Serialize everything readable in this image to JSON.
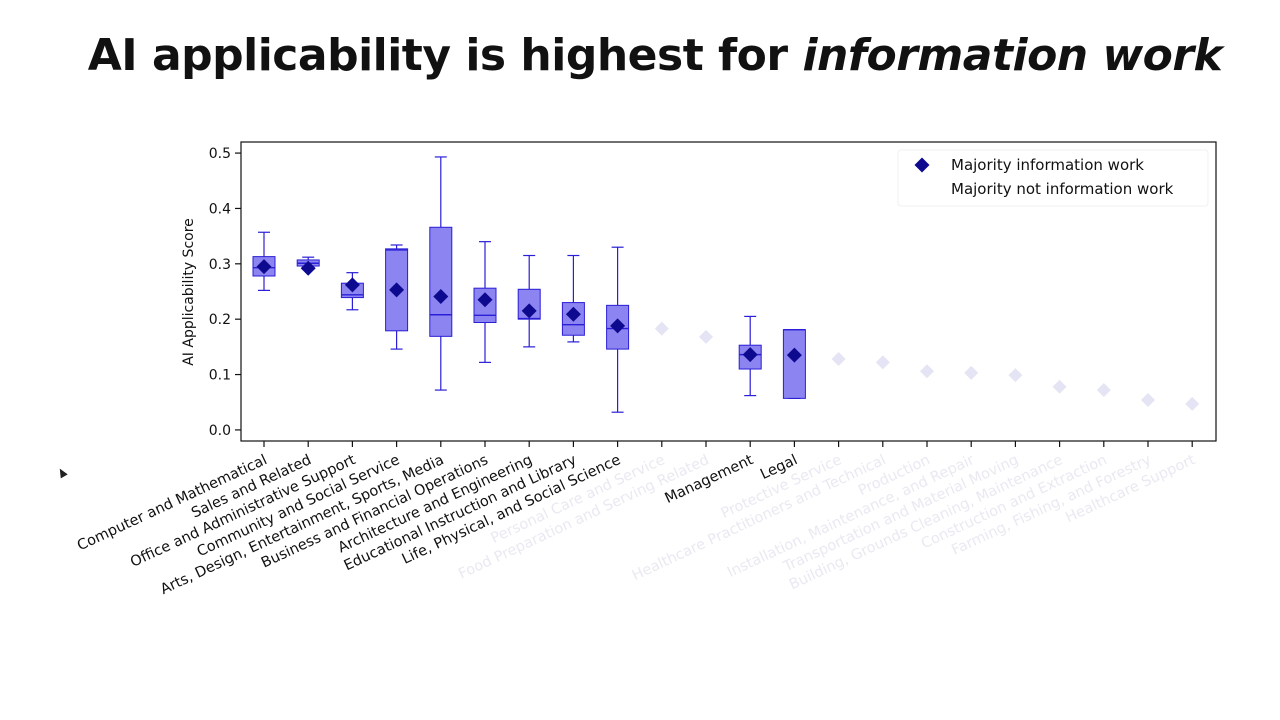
{
  "slide": {
    "title_plain": "AI applicability is highest for ",
    "title_emph": "information work"
  },
  "colors": {
    "box_fill": "#8c84f0",
    "box_edge": "#2a1fd6",
    "marker": "#0d0a8f",
    "faded": "#e4e4f4",
    "faded_text": "#e9e9f2"
  },
  "chart_data": {
    "type": "box",
    "title": "",
    "xlabel": "",
    "ylabel": "AI Applicability Score",
    "ylim": [
      -0.02,
      0.52
    ],
    "yticks": [
      0.0,
      0.1,
      0.2,
      0.3,
      0.4,
      0.5
    ],
    "ytick_labels": [
      "0.0",
      "0.1",
      "0.2",
      "0.3",
      "0.4",
      "0.5"
    ],
    "legend": {
      "position": "top-right",
      "entries": [
        "Majority information work",
        "Majority not information work"
      ]
    },
    "series": [
      {
        "name": "Computer and Mathematical",
        "info": true,
        "min": 0.252,
        "q1": 0.278,
        "median": 0.293,
        "q3": 0.313,
        "max": 0.357,
        "mean": 0.295
      },
      {
        "name": "Sales and Related",
        "info": true,
        "min": 0.29,
        "q1": 0.296,
        "median": 0.301,
        "q3": 0.307,
        "max": 0.312,
        "mean": 0.292
      },
      {
        "name": "Office and Administrative Support",
        "info": true,
        "min": 0.217,
        "q1": 0.239,
        "median": 0.244,
        "q3": 0.265,
        "max": 0.284,
        "mean": 0.262
      },
      {
        "name": "Community and Social Service",
        "info": true,
        "min": 0.146,
        "q1": 0.179,
        "median": 0.325,
        "q3": 0.327,
        "max": 0.334,
        "mean": 0.253
      },
      {
        "name": "Arts, Design, Entertainment, Sports, Media",
        "info": true,
        "min": 0.072,
        "q1": 0.169,
        "median": 0.208,
        "q3": 0.366,
        "max": 0.493,
        "mean": 0.241
      },
      {
        "name": "Business and Financial Operations",
        "info": true,
        "min": 0.122,
        "q1": 0.194,
        "median": 0.207,
        "q3": 0.256,
        "max": 0.34,
        "mean": 0.235
      },
      {
        "name": "Architecture and Engineering",
        "info": true,
        "min": 0.15,
        "q1": 0.2,
        "median": 0.201,
        "q3": 0.254,
        "max": 0.315,
        "mean": 0.215
      },
      {
        "name": "Educational Instruction and Library",
        "info": true,
        "min": 0.159,
        "q1": 0.171,
        "median": 0.19,
        "q3": 0.23,
        "max": 0.315,
        "mean": 0.209
      },
      {
        "name": "Life, Physical, and Social Science",
        "info": true,
        "min": 0.032,
        "q1": 0.146,
        "median": 0.183,
        "q3": 0.225,
        "max": 0.33,
        "mean": 0.188
      },
      {
        "name": "Personal Care and Service",
        "info": false,
        "mean": 0.183
      },
      {
        "name": "Food Preparation and Serving Related",
        "info": false,
        "mean": 0.168
      },
      {
        "name": "Management",
        "info": true,
        "min": 0.062,
        "q1": 0.11,
        "median": 0.136,
        "q3": 0.153,
        "max": 0.205,
        "mean": 0.136
      },
      {
        "name": "Legal",
        "info": true,
        "min": 0.057,
        "q1": 0.057,
        "median": 0.181,
        "q3": 0.181,
        "max": 0.181,
        "mean": 0.135
      },
      {
        "name": "Protective Service",
        "info": false,
        "mean": 0.128
      },
      {
        "name": "Healthcare Practitioners and Technical",
        "info": false,
        "mean": 0.122
      },
      {
        "name": "Production",
        "info": false,
        "mean": 0.106
      },
      {
        "name": "Installation, Maintenance, and Repair",
        "info": false,
        "mean": 0.103
      },
      {
        "name": "Transportation and Material Moving",
        "info": false,
        "mean": 0.099
      },
      {
        "name": "Building, Grounds Cleaning, Maintenance",
        "info": false,
        "mean": 0.078
      },
      {
        "name": "Construction and Extraction",
        "info": false,
        "mean": 0.072
      },
      {
        "name": "Farming, Fishing, and Forestry",
        "info": false,
        "mean": 0.054
      },
      {
        "name": "Healthcare Support",
        "info": false,
        "mean": 0.047
      }
    ]
  }
}
